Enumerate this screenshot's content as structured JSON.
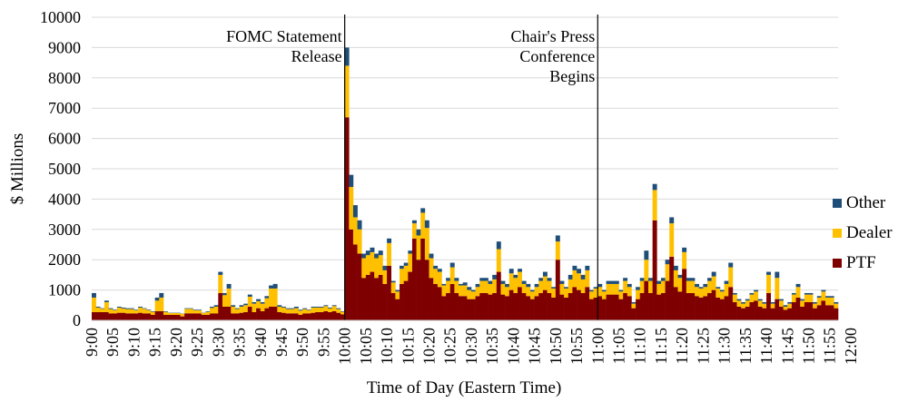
{
  "chart_data": {
    "type": "bar",
    "stacked": true,
    "title": "",
    "xlabel": "Time of Day (Eastern Time)",
    "ylabel": "$ Millions",
    "ylim": [
      0,
      10000
    ],
    "yticks": [
      0,
      1000,
      2000,
      3000,
      4000,
      5000,
      6000,
      7000,
      8000,
      9000,
      10000
    ],
    "grid": true,
    "legend_position": "right",
    "x_interval_minutes": 1,
    "x_range": [
      "9:00",
      "12:00"
    ],
    "xtick_labels": [
      "9:00",
      "9:05",
      "9:10",
      "9:15",
      "9:20",
      "9:25",
      "9:30",
      "9:35",
      "9:40",
      "9:45",
      "9:50",
      "9:55",
      "10:00",
      "10:05",
      "10:10",
      "10:15",
      "10:20",
      "10:25",
      "10:30",
      "10:35",
      "10:40",
      "10:45",
      "10:50",
      "10:55",
      "11:00",
      "11:05",
      "11:10",
      "11:15",
      "11:20",
      "11:25",
      "11:30",
      "11:35",
      "11:40",
      "11:45",
      "11:50",
      "11:55",
      "12:00"
    ],
    "series": [
      {
        "name": "Other",
        "color": "#1F4E79"
      },
      {
        "name": "Dealer",
        "color": "#FFC000"
      },
      {
        "name": "PTF",
        "color": "#7F0000"
      }
    ],
    "totals": [
      900,
      450,
      400,
      650,
      400,
      350,
      450,
      420,
      400,
      400,
      350,
      450,
      400,
      350,
      300,
      750,
      900,
      300,
      250,
      250,
      250,
      220,
      400,
      400,
      350,
      350,
      250,
      300,
      450,
      500,
      1600,
      900,
      1200,
      500,
      400,
      500,
      550,
      850,
      600,
      700,
      600,
      800,
      1150,
      1200,
      500,
      450,
      400,
      400,
      450,
      350,
      400,
      350,
      450,
      450,
      450,
      500,
      420,
      500,
      400,
      300,
      9000,
      4800,
      3800,
      3300,
      2200,
      2300,
      2400,
      2200,
      2300,
      1800,
      2700,
      1300,
      1000,
      1800,
      1900,
      2300,
      3300,
      3000,
      3700,
      3300,
      2200,
      1800,
      1700,
      1200,
      1400,
      1900,
      1400,
      1200,
      1250,
      1100,
      1000,
      1200,
      1400,
      1400,
      1300,
      1500,
      2600,
      1300,
      1200,
      1700,
      1500,
      1700,
      1300,
      1200,
      1000,
      1200,
      1400,
      1600,
      1400,
      1100,
      2800,
      1300,
      1100,
      1500,
      1800,
      1700,
      1500,
      1800,
      1000,
      1100,
      1200,
      1000,
      1300,
      1300,
      1300,
      1000,
      1400,
      1200,
      600,
      1100,
      1400,
      2300,
      1400,
      4500,
      1300,
      1400,
      2000,
      3400,
      1800,
      1500,
      2400,
      1400,
      1400,
      1200,
      1100,
      1200,
      1400,
      1600,
      1100,
      1000,
      1300,
      1900,
      900,
      700,
      600,
      700,
      900,
      1000,
      700,
      600,
      1600,
      600,
      1600,
      700,
      500,
      600,
      900,
      1200,
      700,
      900,
      900,
      600,
      800,
      1000,
      800,
      800,
      600
    ],
    "ptf_values": [
      270,
      270,
      270,
      270,
      230,
      230,
      250,
      250,
      230,
      230,
      230,
      250,
      230,
      230,
      180,
      300,
      300,
      180,
      180,
      180,
      180,
      130,
      230,
      230,
      230,
      230,
      180,
      180,
      230,
      230,
      900,
      450,
      450,
      230,
      230,
      250,
      270,
      450,
      270,
      400,
      300,
      400,
      450,
      450,
      270,
      250,
      230,
      230,
      230,
      180,
      230,
      230,
      250,
      270,
      270,
      300,
      270,
      300,
      250,
      200,
      6700,
      3000,
      2500,
      2200,
      1400,
      1500,
      1600,
      1400,
      1500,
      1200,
      1800,
      900,
      700,
      1200,
      1300,
      1600,
      2700,
      2000,
      2700,
      2000,
      1400,
      1200,
      1100,
      800,
      900,
      1200,
      900,
      800,
      800,
      700,
      700,
      800,
      900,
      900,
      850,
      900,
      1600,
      850,
      800,
      1000,
      900,
      1100,
      900,
      800,
      700,
      800,
      900,
      1000,
      900,
      750,
      2000,
      850,
      750,
      900,
      1100,
      1000,
      900,
      1100,
      700,
      750,
      800,
      700,
      850,
      850,
      850,
      700,
      900,
      800,
      400,
      700,
      900,
      1300,
      900,
      3300,
      850,
      900,
      1300,
      2100,
      1100,
      950,
      1700,
      900,
      900,
      800,
      750,
      800,
      900,
      1000,
      750,
      700,
      800,
      1100,
      600,
      450,
      400,
      450,
      600,
      650,
      450,
      400,
      900,
      400,
      700,
      450,
      350,
      400,
      600,
      750,
      450,
      600,
      600,
      400,
      500,
      650,
      500,
      500,
      400
    ],
    "dealer_values": [
      480,
      150,
      110,
      330,
      140,
      100,
      170,
      140,
      140,
      140,
      100,
      170,
      150,
      100,
      100,
      350,
      450,
      100,
      60,
      60,
      60,
      80,
      150,
      150,
      100,
      100,
      60,
      100,
      180,
      220,
      600,
      380,
      600,
      220,
      140,
      200,
      230,
      330,
      280,
      230,
      250,
      330,
      600,
      600,
      180,
      170,
      140,
      140,
      170,
      140,
      140,
      100,
      170,
      150,
      150,
      170,
      120,
      170,
      120,
      80,
      1700,
      1400,
      900,
      800,
      650,
      650,
      650,
      650,
      650,
      450,
      750,
      350,
      250,
      500,
      500,
      600,
      500,
      800,
      850,
      1050,
      650,
      500,
      500,
      350,
      400,
      550,
      400,
      350,
      350,
      300,
      250,
      300,
      400,
      400,
      350,
      450,
      750,
      350,
      300,
      550,
      500,
      500,
      300,
      300,
      250,
      300,
      400,
      450,
      400,
      300,
      600,
      350,
      300,
      450,
      550,
      550,
      450,
      550,
      250,
      300,
      300,
      250,
      350,
      350,
      350,
      250,
      400,
      300,
      150,
      300,
      400,
      700,
      400,
      1000,
      350,
      400,
      550,
      1100,
      550,
      450,
      550,
      400,
      400,
      300,
      300,
      300,
      400,
      450,
      300,
      250,
      400,
      650,
      250,
      200,
      150,
      200,
      250,
      300,
      200,
      150,
      600,
      150,
      700,
      200,
      100,
      150,
      250,
      350,
      200,
      250,
      250,
      150,
      250,
      300,
      250,
      250,
      150
    ]
  },
  "annotations": [
    {
      "at": "10:00",
      "text_lines": [
        "FOMC Statement",
        "Release"
      ]
    },
    {
      "at": "11:00",
      "text_lines": [
        "Chair's Press",
        "Conference",
        "Begins"
      ]
    }
  ]
}
